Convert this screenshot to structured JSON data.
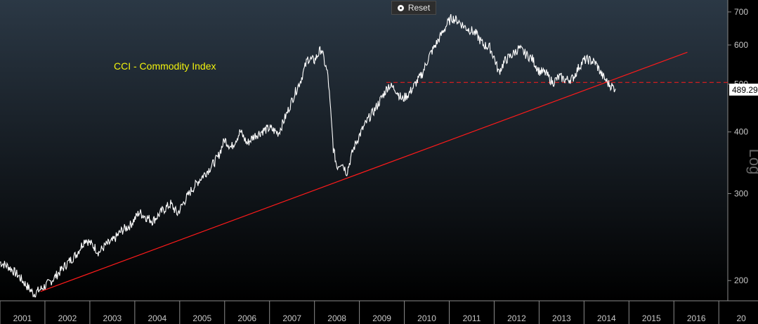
{
  "toolbar": {
    "reset_label": "Reset"
  },
  "colors": {
    "background_top": "#2b3845",
    "background_bottom": "#000000",
    "price_line": "#ffffff",
    "trend_line": "#ff1a1a",
    "support_line": "#ff1a1a",
    "title_text": "#f2f20d",
    "axis_text": "#c8c8c8"
  },
  "chart_data": {
    "type": "line",
    "title": "CCI - Commodity Index",
    "xlabel": "",
    "ylabel": "Log",
    "y_scale": "log",
    "ylim": [
      182,
      740
    ],
    "xlim": [
      2001.0,
      2017.2
    ],
    "x_ticks": [
      "2001",
      "2002",
      "2003",
      "2004",
      "2005",
      "2006",
      "2007",
      "2008",
      "2009",
      "2010",
      "2011",
      "2012",
      "2013",
      "2014",
      "2015",
      "2016",
      "20"
    ],
    "y_ticks": [
      200,
      300,
      400,
      500,
      600,
      700
    ],
    "grid": false,
    "last_value_label": "489.29",
    "series": [
      {
        "x": [
          2001.0,
          2001.2,
          2001.4,
          2001.6,
          2001.75,
          2001.9,
          2002.1,
          2002.3,
          2002.5,
          2002.7,
          2002.9,
          2003.1,
          2003.2,
          2003.35,
          2003.5,
          2003.7,
          2003.9,
          2004.1,
          2004.25,
          2004.4,
          2004.6,
          2004.8,
          2004.95,
          2005.1,
          2005.25,
          2005.45,
          2005.65,
          2005.85,
          2006.0,
          2006.15,
          2006.35,
          2006.5,
          2006.65,
          2006.85,
          2007.0,
          2007.2,
          2007.4,
          2007.55,
          2007.7,
          2007.85,
          2008.0,
          2008.15,
          2008.3,
          2008.42,
          2008.5,
          2008.6,
          2008.72,
          2008.85,
          2008.92,
          2009.05,
          2009.2,
          2009.35,
          2009.5,
          2009.65,
          2009.8,
          2009.95,
          2010.1,
          2010.25,
          2010.4,
          2010.55,
          2010.7,
          2010.85,
          2010.95,
          2011.05,
          2011.2,
          2011.35,
          2011.5,
          2011.6,
          2011.75,
          2011.9,
          2012.0,
          2012.1,
          2012.25,
          2012.4,
          2012.55,
          2012.7,
          2012.85,
          2013.0,
          2013.15,
          2013.3,
          2013.45,
          2013.6,
          2013.75,
          2013.9,
          2014.0,
          2014.1,
          2014.25,
          2014.4,
          2014.55,
          2014.7
        ],
        "y": [
          218,
          213,
          205,
          195,
          188,
          192,
          198,
          207,
          217,
          226,
          243,
          234,
          228,
          236,
          240,
          252,
          259,
          275,
          269,
          264,
          276,
          286,
          273,
          289,
          304,
          321,
          336,
          355,
          386,
          372,
          401,
          379,
          392,
          402,
          407,
          398,
          439,
          476,
          511,
          563,
          558,
          590,
          520,
          370,
          340,
          348,
          331,
          365,
          380,
          402,
          425,
          445,
          470,
          497,
          489,
          465,
          478,
          501,
          525,
          569,
          601,
          636,
          661,
          681,
          671,
          652,
          641,
          631,
          601,
          593,
          566,
          528,
          559,
          573,
          591,
          575,
          562,
          531,
          526,
          503,
          517,
          510,
          513,
          544,
          559,
          560,
          553,
          521,
          500,
          489
        ]
      }
    ],
    "trend_line": {
      "x": [
        2001.9,
        2016.3
      ],
      "y": [
        190,
        580
      ]
    },
    "support_line": {
      "y": 504,
      "x_start": 2009.6
    }
  }
}
